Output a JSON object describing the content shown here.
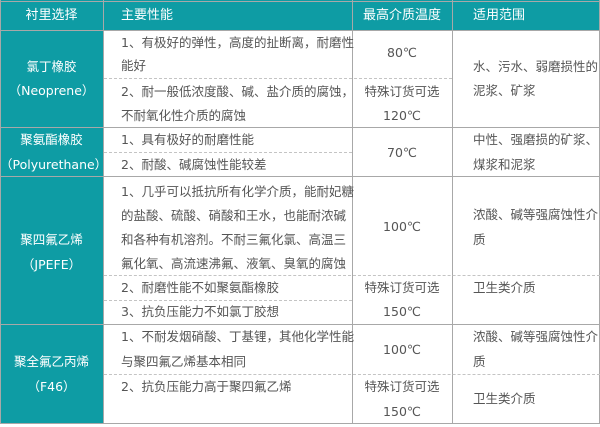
{
  "header": [
    "衬里选择",
    "主要性能",
    "最高介质温度",
    "适用范围"
  ],
  "colors": {
    "accent": "#0e9ca4",
    "text": "#555555",
    "border": "#a8a8a8"
  },
  "rows": [
    {
      "material": [
        "氯丁橡胶",
        "（Neoprene）"
      ],
      "properties": [
        "1、有极好的弹性，高度的扯断离，耐磨性",
        "能好",
        "2、耐一般低浓度酸、碱、盐介质的腐蚀，",
        "不耐氧化性介质的腐蚀"
      ],
      "temperatures": [
        "80℃",
        "特殊订货可选",
        "120℃"
      ],
      "applications": [
        "水、污水、弱磨损性的",
        "泥浆、矿浆"
      ]
    },
    {
      "material": [
        "聚氨酯橡胶",
        "（Polyurethane）"
      ],
      "properties": [
        "1、具有极好的耐磨性能",
        "2、耐酸、碱腐蚀性能较差"
      ],
      "temperatures": [
        "70℃"
      ],
      "applications": [
        "中性、强磨损的矿浆、",
        "煤浆和泥浆"
      ]
    },
    {
      "material": [
        "聚四氟乙烯",
        "（JPEFE）"
      ],
      "properties": [
        "1、几乎可以抵抗所有化学介质，能耐妃糖",
        "的盐酸、硫酸、硝酸和王水，也能耐浓碱",
        "和各种有机溶剂。不耐三氟化氯、高温三",
        "氟化氧、高流速沸氟、液氧、臭氧的腐蚀",
        "2、耐磨性能不如聚氨酯橡胶",
        "3、抗负压能力不如氯丁胶想"
      ],
      "temperatures": [
        "100℃",
        "特殊订货可选",
        "150℃"
      ],
      "applications": [
        "浓酸、碱等强腐蚀性介",
        "质",
        "卫生类介质"
      ]
    },
    {
      "material": [
        "聚全氟乙丙烯",
        "（F46）"
      ],
      "properties": [
        "1、不耐发烟硝酸、丁基锂，其他化学性能",
        "与聚四氟乙烯基本相同",
        "2、抗负压能力高于聚四氟乙烯"
      ],
      "temperatures": [
        "100℃",
        "特殊订货可选",
        "150℃"
      ],
      "applications": [
        "浓酸、碱等强腐蚀性介",
        "质",
        "卫生类介质"
      ]
    }
  ]
}
